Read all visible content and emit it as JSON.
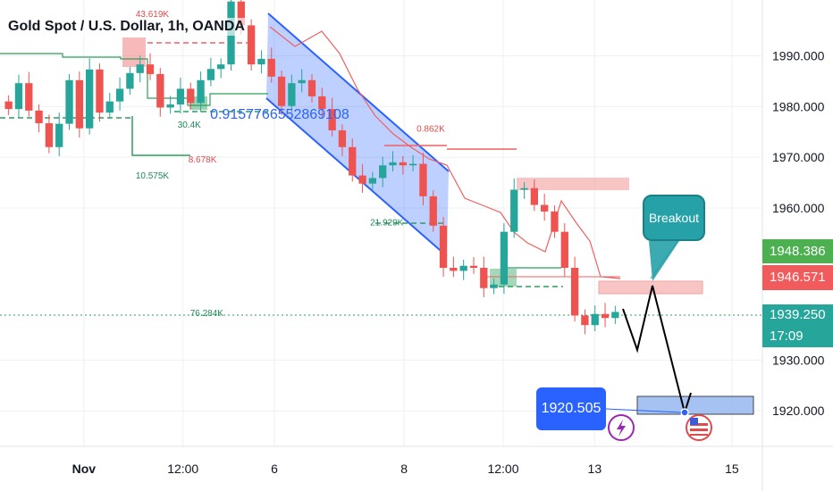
{
  "header": {
    "title": "Gold Spot / U.S. Dollar, 1h, OANDA"
  },
  "chart_data": {
    "type": "candlestick",
    "y_ticks": [
      "1990.000",
      "1980.000",
      "1970.000",
      "1960.000",
      "1930.000",
      "1920.000"
    ],
    "x_ticks": [
      "Nov",
      "12:00",
      "6",
      "8",
      "12:00",
      "13",
      "15"
    ],
    "ylim": [
      1913,
      2001
    ],
    "grid": true,
    "series_closes": [
      1979.5,
      1984.6,
      1979.2,
      1976.7,
      1972.0,
      1976.6,
      1985.2,
      1975.7,
      1987.3,
      1978.8,
      1981.0,
      1983.5,
      1986.6,
      1988.3,
      1986.4,
      1979.8,
      1980.4,
      1983.5,
      1980.7,
      1985.2,
      1987.4,
      1988.3,
      2000.7,
      1996.0,
      1988.3,
      1989.4,
      1985.9,
      1980.1,
      1984.6,
      1985.2,
      1982.0,
      1979.5,
      1975.3,
      1972.0,
      1966.4,
      1964.8,
      1965.9,
      1968.4,
      1969.0,
      1968.4,
      1968.7,
      1962.3,
      1956.5,
      1948.2,
      1947.6,
      1948.6,
      1948.2,
      1944.2,
      1944.9,
      1955.3,
      1963.6,
      1963.9,
      1960.6,
      1959.3,
      1955.3,
      1948.2,
      1938.8,
      1936.9,
      1939.1,
      1938.3,
      1939.5
    ],
    "price_labels": {
      "green": "1948.386",
      "red": "1946.571",
      "current": "1939.250",
      "countdown": "17:09"
    },
    "annotations": [
      {
        "text": "43.619K",
        "x": "Nov",
        "y": 1997.7
      },
      {
        "text": "30.4K",
        "x": "12:00",
        "y": 1975.8
      },
      {
        "text": "10.575K",
        "x": "Nov",
        "y": 1965.8
      },
      {
        "text": "0.9157766552869108",
        "x": "6",
        "y": 1977.6
      },
      {
        "text": "0.862K",
        "x": "8",
        "y": 1975.0
      },
      {
        "text": "8.678K",
        "x": "12:00",
        "y": 1969.0
      },
      {
        "text": "21.929K",
        "x": "8",
        "y": 1956.6
      },
      {
        "text": "76.284K",
        "x": "12:00",
        "y": 1938.7
      }
    ],
    "target_label": "1920.505",
    "breakout_label": "Breakout"
  }
}
